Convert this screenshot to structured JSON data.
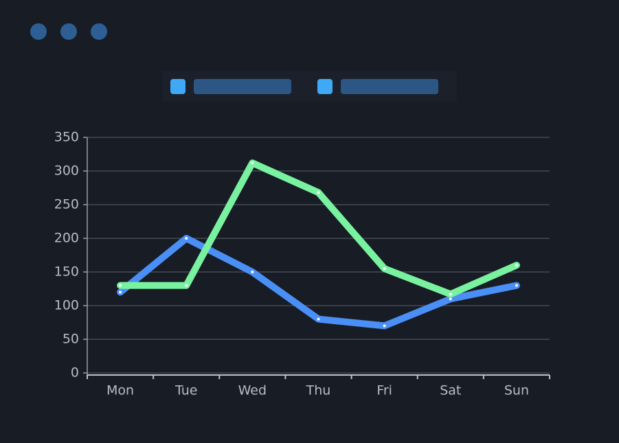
{
  "chart_data": {
    "type": "line",
    "categories": [
      "Mon",
      "Tue",
      "Wed",
      "Thu",
      "Fri",
      "Sat",
      "Sun"
    ],
    "series": [
      {
        "color": "#4a8ff5",
        "values": [
          120,
          200,
          150,
          80,
          70,
          110,
          130
        ]
      },
      {
        "color": "#79f2a0",
        "values": [
          130,
          130,
          312,
          268,
          155,
          117,
          160
        ]
      }
    ],
    "ylim": [
      0,
      350
    ],
    "yticks": [
      0,
      50,
      100,
      150,
      200,
      250,
      300,
      350
    ],
    "grid": true
  }
}
